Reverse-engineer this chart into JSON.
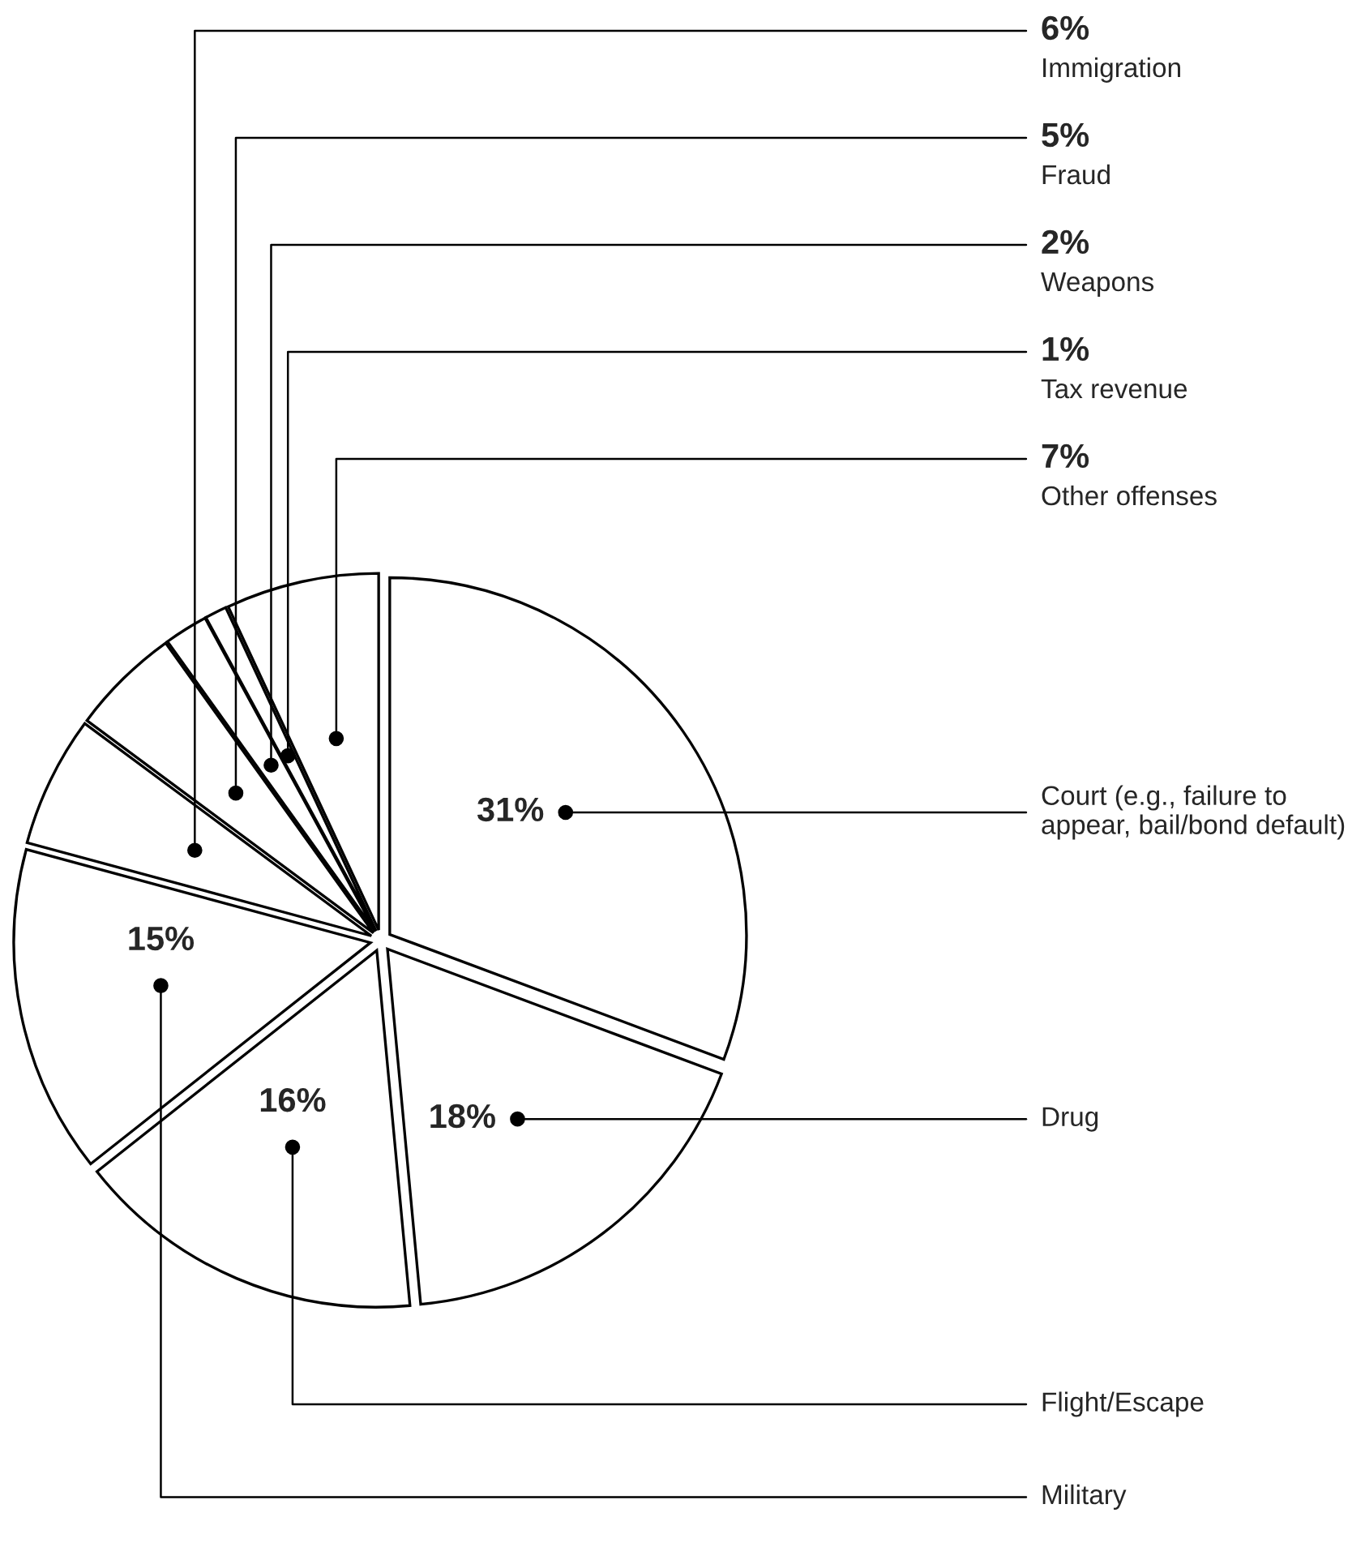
{
  "chart_data": {
    "type": "pie",
    "categories": [
      "Court (e.g., failure to appear, bail/bond default)",
      "Drug",
      "Flight/Escape",
      "Military",
      "Immigration",
      "Fraud",
      "Weapons",
      "Tax revenue",
      "Other offenses"
    ],
    "values": [
      31,
      18,
      16,
      15,
      6,
      5,
      2,
      1,
      7
    ],
    "value_labels": [
      "31%",
      "18%",
      "16%",
      "15%",
      "6%",
      "5%",
      "2%",
      "1%",
      "7%"
    ],
    "colors": [
      "#ffffff",
      "#ffffff",
      "#ffffff",
      "#ffffff",
      "#ffffff",
      "#ffffff",
      "#ffffff",
      "#ffffff",
      "#ffffff"
    ]
  }
}
